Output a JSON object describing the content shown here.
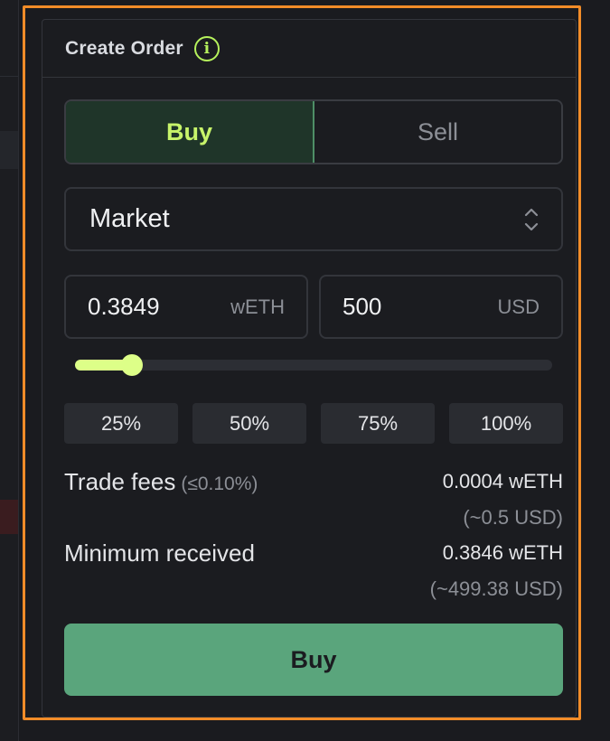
{
  "panel": {
    "title": "Create Order"
  },
  "side_toggle": {
    "buy_label": "Buy",
    "sell_label": "Sell",
    "selected": "Buy"
  },
  "order_type": {
    "selected": "Market"
  },
  "amounts": {
    "base_value": "0.3849",
    "base_unit": "wETH",
    "quote_value": "500",
    "quote_unit": "USD"
  },
  "slider": {
    "fraction": 0.12
  },
  "percent_buttons": [
    "25%",
    "50%",
    "75%",
    "100%"
  ],
  "trade_fees": {
    "label": "Trade fees",
    "rate": "(≤0.10%)",
    "value": "0.0004 wETH",
    "value_usd": "(~0.5 USD)"
  },
  "minimum_received": {
    "label": "Minimum received",
    "value": "0.3846 wETH",
    "value_usd": "(~499.38 USD)"
  },
  "submit": {
    "label": "Buy"
  },
  "colors": {
    "accent_lime": "#ddff88",
    "buy_green": "#5aa57c",
    "highlight_orange": "#f28c28"
  }
}
